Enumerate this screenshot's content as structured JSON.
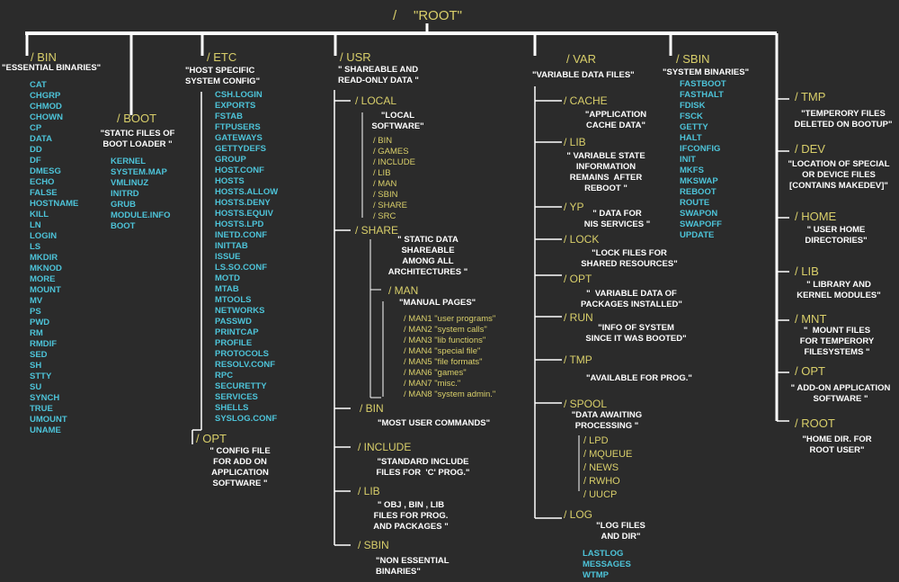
{
  "root": {
    "slash": "/",
    "label": "\"ROOT\""
  },
  "bin": {
    "name": "/ BIN",
    "desc": "\"ESSENTIAL BINARIES\"",
    "items": [
      "CAT",
      "CHGRP",
      "CHMOD",
      "CHOWN",
      "CP",
      "DATA",
      "DD",
      "DF",
      "DMESG",
      "ECHO",
      "FALSE",
      "HOSTNAME",
      "KILL",
      "LN",
      "LOGIN",
      "LS",
      "MKDIR",
      "MKNOD",
      "MORE",
      "MOUNT",
      "MV",
      "PS",
      "PWD",
      "RM",
      "RMDIF",
      "SED",
      "SH",
      "STTY",
      "SU",
      "SYNCH",
      "TRUE",
      "UMOUNT",
      "UNAME"
    ]
  },
  "boot": {
    "name": "/ BOOT",
    "desc": "\"STATIC FILES OF\nBOOT LOADER \"",
    "items": [
      "KERNEL",
      "SYSTEM.MAP",
      "VMLINUZ",
      "INITRD",
      "GRUB",
      "MODULE.INFO",
      "BOOT"
    ]
  },
  "etc": {
    "name": "/ ETC",
    "desc": "\"HOST SPECIFIC\nSYSTEM CONFIG\"",
    "items": [
      "CSH.LOGIN",
      "EXPORTS",
      "FSTAB",
      "FTPUSERS",
      "GATEWAYS",
      "GETTYDEFS",
      "GROUP",
      "HOST.CONF",
      "HOSTS",
      "HOSTS.ALLOW",
      "HOSTS.DENY",
      "HOSTS.EQUIV",
      "HOSTS.LPD",
      "INETD.CONF",
      "INITTAB",
      "ISSUE",
      "LS.SO.CONF",
      "MOTD",
      "MTAB",
      "MTOOLS",
      "NETWORKS",
      "PASSWD",
      "PRINTCAP",
      "PROFILE",
      "PROTOCOLS",
      "RESOLV.CONF",
      "RPC",
      "SECURETTY",
      "SERVICES",
      "SHELLS",
      "SYSLOG.CONF"
    ],
    "opt": {
      "name": "/ OPT",
      "desc": "\" CONFIG FILE\nFOR ADD ON\nAPPLICATION\nSOFTWARE \""
    }
  },
  "usr": {
    "name": "/ USR",
    "desc": "\" SHAREABLE AND\nREAD-ONLY DATA \"",
    "local": {
      "name": "/ LOCAL",
      "desc": "\"LOCAL\nSOFTWARE\"",
      "items": [
        "/ BIN",
        "/ GAMES",
        "/ INCLUDE",
        "/ LIB",
        "/ MAN",
        "/ SBIN",
        "/ SHARE",
        "/ SRC"
      ]
    },
    "share": {
      "name": "/ SHARE",
      "desc": "\" STATIC DATA\nSHAREABLE\nAMONG ALL\nARCHITECTURES \"",
      "man": {
        "name": "/ MAN",
        "desc": "\"MANUAL PAGES\"",
        "items": [
          "/ MAN1 \"user programs\"",
          "/ MAN2 \"system calls\"",
          "/ MAN3 \"lib functions\"",
          "/ MAN4 \"special file\"",
          "/ MAN5 \"file formats\"",
          "/ MAN6 \"games\"",
          "/ MAN7 \"misc.\"",
          "/ MAN8 \"system admin.\""
        ]
      }
    },
    "bin": {
      "name": "/ BIN",
      "desc": "\"MOST USER COMMANDS\""
    },
    "include": {
      "name": "/ INCLUDE",
      "desc": "\"STANDARD INCLUDE\nFILES FOR  'C' PROG.\""
    },
    "lib": {
      "name": "/ LIB",
      "desc": "\" OBJ , BIN , LIB\nFILES FOR PROG.\nAND PACKAGES \""
    },
    "sbin": {
      "name": "/ SBIN",
      "desc": "\"NON ESSENTIAL\nBINARIES\""
    }
  },
  "var": {
    "name": "/ VAR",
    "desc": "\"VARIABLE DATA FILES\"",
    "cache": {
      "name": "/ CACHE",
      "desc": "\"APPLICATION\nCACHE DATA\""
    },
    "lib": {
      "name": "/ LIB",
      "desc": "\" VARIABLE STATE\nINFORMATION\nREMAINS  AFTER\nREBOOT \""
    },
    "yp": {
      "name": "/ YP",
      "desc": "\" DATA FOR\nNIS SERVICES \""
    },
    "lock": {
      "name": "/ LOCK",
      "desc": "\"LOCK FILES FOR\nSHARED RESOURCES\""
    },
    "opt": {
      "name": "/ OPT",
      "desc": "\"  VARIABLE DATA OF\nPACKAGES INSTALLED\""
    },
    "run": {
      "name": "/ RUN",
      "desc": "\"INFO OF SYSTEM\nSINCE IT WAS BOOTED\""
    },
    "tmp": {
      "name": "/ TMP",
      "desc": "\"AVAILABLE FOR PROG.\""
    },
    "spool": {
      "name": "/ SPOOL",
      "desc": "\"DATA AWAITING\nPROCESSING \"",
      "items": [
        "/ LPD",
        "/ MQUEUE",
        "/ NEWS",
        "/ RWHO",
        "/ UUCP"
      ]
    },
    "log": {
      "name": "/ LOG",
      "desc": "\"LOG FILES\nAND DIR\"",
      "items": [
        "LASTLOG",
        "MESSAGES",
        "WTMP"
      ]
    }
  },
  "sbin": {
    "name": "/ SBIN",
    "desc": "\"SYSTEM BINARIES\"",
    "items": [
      "FASTBOOT",
      "FASTHALT",
      "FDISK",
      "FSCK",
      "GETTY",
      "HALT",
      "IFCONFIG",
      "INIT",
      "MKFS",
      "MKSWAP",
      "REBOOT",
      "ROUTE",
      "SWAPON",
      "SWAPOFF",
      "UPDATE"
    ]
  },
  "right": [
    {
      "name": "/ TMP",
      "desc": "\"TEMPERORY FILES\nDELETED ON BOOTUP\""
    },
    {
      "name": "/ DEV",
      "desc": "\"LOCATION OF SPECIAL\nOR DEVICE FILES\n[CONTAINS MAKEDEV]\""
    },
    {
      "name": "/ HOME",
      "desc": "\" USER HOME\nDIRECTORIES\""
    },
    {
      "name": "/ LIB",
      "desc": "\" LIBRARY AND\nKERNEL MODULES\""
    },
    {
      "name": "/ MNT",
      "desc": "\"  MOUNT FILES\nFOR TEMPERORY\nFILESYSTEMS \""
    },
    {
      "name": "/ OPT",
      "desc": "\" ADD-ON APPLICATION\nSOFTWARE \""
    },
    {
      "name": "/ ROOT",
      "desc": "\"HOME DIR. FOR\nROOT USER\""
    }
  ],
  "colors": {
    "background": "#2b2b2b",
    "lines": "#ffffff",
    "directory": "#d9cf6a",
    "file": "#4dc3d8",
    "description": "#ffffff"
  }
}
